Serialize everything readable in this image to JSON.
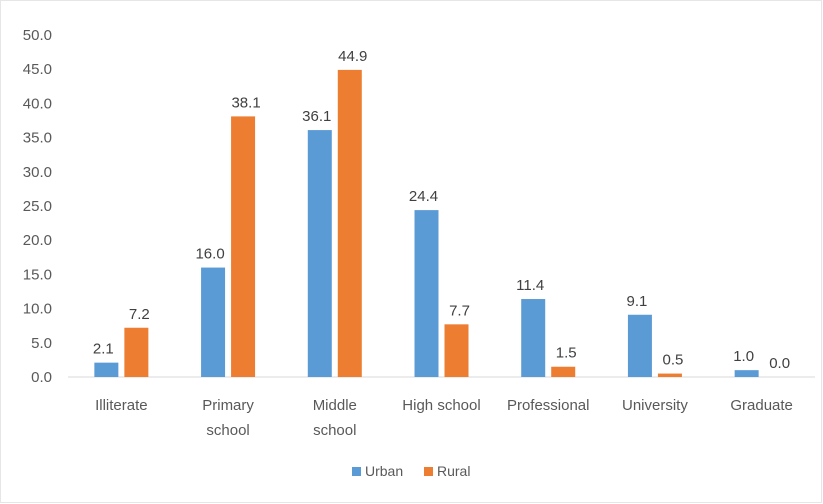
{
  "chart_data": {
    "type": "bar",
    "categories": [
      [
        "Illiterate"
      ],
      [
        "Primary",
        "school"
      ],
      [
        "Middle",
        "school"
      ],
      [
        "High school"
      ],
      [
        "Professional"
      ],
      [
        "University"
      ],
      [
        "Graduate"
      ]
    ],
    "series": [
      {
        "name": "Urban",
        "color": "#5B9BD5",
        "values": [
          2.1,
          16.0,
          36.1,
          24.4,
          11.4,
          9.1,
          1.0
        ],
        "labels": [
          "2.1",
          "16.0",
          "36.1",
          "24.4",
          "11.4",
          "9.1",
          "1.0"
        ]
      },
      {
        "name": "Rural",
        "color": "#ED7D31",
        "values": [
          7.2,
          38.1,
          44.9,
          7.7,
          1.5,
          0.5,
          0.0
        ],
        "labels": [
          "7.2",
          "38.1",
          "44.9",
          "7.7",
          "1.5",
          "0.5",
          "0.0"
        ]
      }
    ],
    "yticks": [
      "0.0",
      "5.0",
      "10.0",
      "15.0",
      "20.0",
      "25.0",
      "30.0",
      "35.0",
      "40.0",
      "45.0",
      "50.0"
    ],
    "ylim": [
      0,
      50
    ],
    "grid": false,
    "legend": "bottom"
  }
}
